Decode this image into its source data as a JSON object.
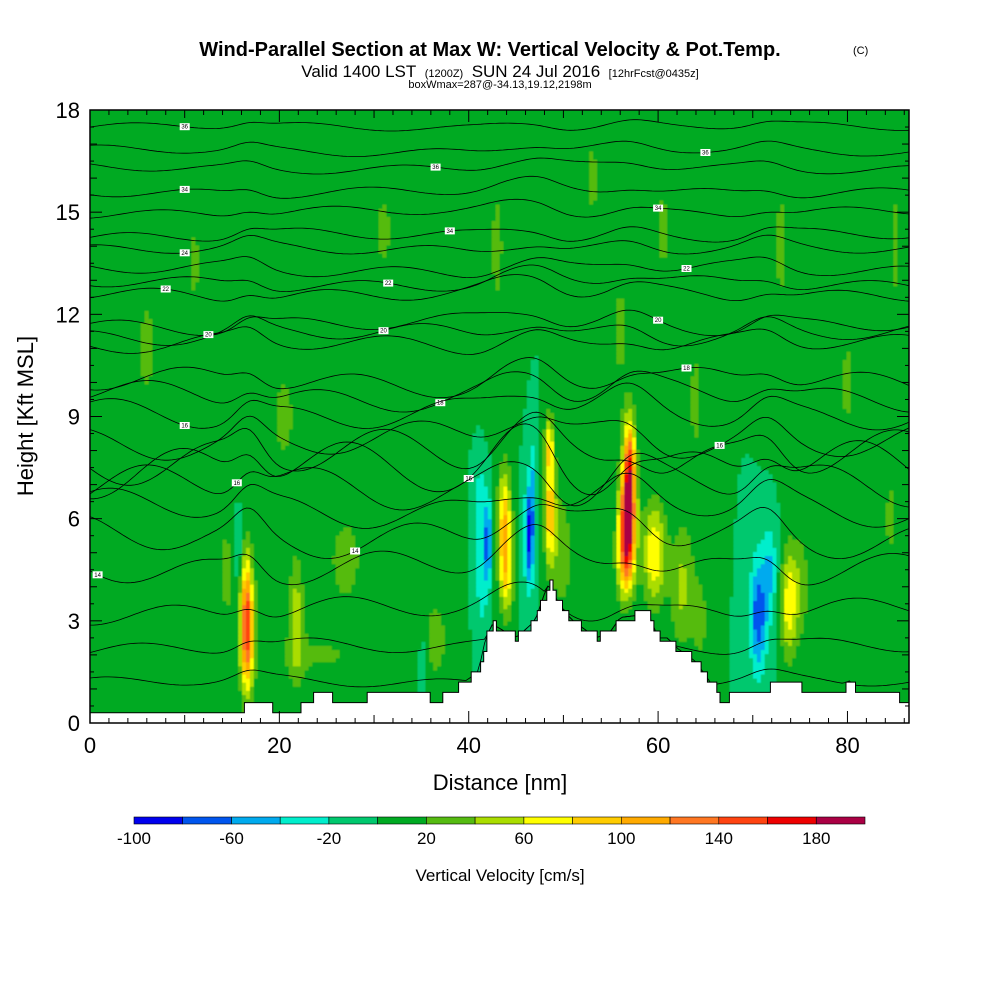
{
  "chart_data": {
    "type": "heatmap",
    "title": "Wind-Parallel Section at Max W: Vertical Velocity & Pot.Temp.",
    "title_units": "(C)",
    "subtitle": {
      "valid": "Valid 1400 LST",
      "utc": "(1200Z)",
      "date": "SUN 24 Jul 2016",
      "forecast": "[12hrFcst@0435z]"
    },
    "box_note": "boxWmax=287@-34.13,19.12,2198m",
    "xlabel": "Distance [nm]",
    "ylabel": "Height [Kft MSL]",
    "xlim": [
      0,
      86.5
    ],
    "ylim": [
      0,
      18
    ],
    "xticks": [
      0,
      20,
      40,
      60,
      80
    ],
    "yticks": [
      0,
      3,
      6,
      9,
      12,
      15,
      18
    ],
    "background_value": 0,
    "colorbar": {
      "title": "Vertical Velocity [cm/s]",
      "min": -100,
      "max": 200,
      "levels": [
        -100,
        -80,
        -60,
        -40,
        -20,
        0,
        20,
        40,
        60,
        80,
        100,
        120,
        140,
        160,
        180,
        200
      ],
      "colors": [
        "#0000ee",
        "#0055ee",
        "#00aaee",
        "#00eecc",
        "#00c86e",
        "#00aa22",
        "#55bb11",
        "#aadd00",
        "#ffff00",
        "#ffcc00",
        "#ffaa00",
        "#ff7722",
        "#ff4411",
        "#ee0000",
        "#aa0044"
      ],
      "labels": [
        "-100",
        "-60",
        "-20",
        "20",
        "60",
        "100",
        "140",
        "180"
      ],
      "label_values": [
        -100,
        -60,
        -20,
        20,
        60,
        100,
        140,
        180
      ]
    },
    "cells": [
      {
        "x": 16.5,
        "y": 3.0,
        "w": 85,
        "sx": 0.6,
        "sy": 2.0
      },
      {
        "x": 16.7,
        "y": 2.8,
        "w": 80,
        "sx": 0.8,
        "sy": 1.8
      },
      {
        "x": 21.8,
        "y": 3.1,
        "w": 50,
        "sx": 0.8,
        "sy": 1.8
      },
      {
        "x": 15.6,
        "y": 5.0,
        "w": -30,
        "sx": 0.6,
        "sy": 1.2
      },
      {
        "x": 14.5,
        "y": 4.5,
        "w": 25,
        "sx": 1.2,
        "sy": 2.2
      },
      {
        "x": 43.8,
        "y": 5.8,
        "w": 100,
        "sx": 0.7,
        "sy": 1.6
      },
      {
        "x": 44.0,
        "y": 4.2,
        "w": 55,
        "sx": 0.7,
        "sy": 1.2
      },
      {
        "x": 42.0,
        "y": 5.3,
        "w": -70,
        "sx": 0.4,
        "sy": 1.4
      },
      {
        "x": 41.3,
        "y": 4.5,
        "w": -35,
        "sx": 0.5,
        "sy": 1.8
      },
      {
        "x": 41.2,
        "y": 6.8,
        "w": -25,
        "sx": 0.5,
        "sy": 1.0
      },
      {
        "x": 46.4,
        "y": 5.5,
        "w": -90,
        "sx": 0.5,
        "sy": 1.5
      },
      {
        "x": 46.8,
        "y": 7.2,
        "w": -30,
        "sx": 0.4,
        "sy": 1.3
      },
      {
        "x": 48.6,
        "y": 6.2,
        "w": 95,
        "sx": 0.6,
        "sy": 1.6
      },
      {
        "x": 48.5,
        "y": 8.2,
        "w": 65,
        "sx": 0.5,
        "sy": 0.9
      },
      {
        "x": 49.9,
        "y": 5.0,
        "w": 35,
        "sx": 1.0,
        "sy": 1.8
      },
      {
        "x": 56.8,
        "y": 6.2,
        "w": 190,
        "sx": 0.8,
        "sy": 1.3
      },
      {
        "x": 57.0,
        "y": 7.8,
        "w": 120,
        "sx": 0.6,
        "sy": 1.2
      },
      {
        "x": 56.6,
        "y": 4.8,
        "w": 110,
        "sx": 0.9,
        "sy": 1.2
      },
      {
        "x": 59.6,
        "y": 5.0,
        "w": 80,
        "sx": 1.2,
        "sy": 1.5
      },
      {
        "x": 62.5,
        "y": 4.0,
        "w": 45,
        "sx": 1.2,
        "sy": 1.8
      },
      {
        "x": 64.5,
        "y": 3.0,
        "w": 25,
        "sx": 1.0,
        "sy": 1.5
      },
      {
        "x": 70.6,
        "y": 3.2,
        "w": -75,
        "sx": 0.9,
        "sy": 1.7
      },
      {
        "x": 71.8,
        "y": 4.5,
        "w": -40,
        "sx": 0.7,
        "sy": 1.4
      },
      {
        "x": 73.8,
        "y": 3.5,
        "w": 70,
        "sx": 0.8,
        "sy": 1.6
      },
      {
        "x": 75.0,
        "y": 4.0,
        "w": 35,
        "sx": 1.0,
        "sy": 1.6
      },
      {
        "x": 27.0,
        "y": 4.8,
        "w": 30,
        "sx": 2.0,
        "sy": 1.5
      },
      {
        "x": 36.5,
        "y": 2.5,
        "w": 28,
        "sx": 1.5,
        "sy": 1.5
      },
      {
        "x": 35.2,
        "y": 1.8,
        "w": -25,
        "sx": 0.4,
        "sy": 0.8
      },
      {
        "x": 6.0,
        "y": 11.0,
        "w": 22,
        "sx": 2.0,
        "sy": 3.5
      },
      {
        "x": 11.0,
        "y": 13.5,
        "w": 22,
        "sx": 1.5,
        "sy": 2.5
      },
      {
        "x": 20.5,
        "y": 9.0,
        "w": 22,
        "sx": 2.5,
        "sy": 3.0
      },
      {
        "x": 31.0,
        "y": 14.5,
        "w": 22,
        "sx": 2.0,
        "sy": 2.5
      },
      {
        "x": 43.0,
        "y": 14.0,
        "w": 22,
        "sx": 1.5,
        "sy": 4.0
      },
      {
        "x": 53.0,
        "y": 16.0,
        "w": 22,
        "sx": 1.5,
        "sy": 2.5
      },
      {
        "x": 56.0,
        "y": 11.5,
        "w": 22,
        "sx": 1.5,
        "sy": 3.5
      },
      {
        "x": 60.5,
        "y": 14.5,
        "w": 22,
        "sx": 1.5,
        "sy": 3.0
      },
      {
        "x": 64.0,
        "y": 9.5,
        "w": 22,
        "sx": 1.5,
        "sy": 3.5
      },
      {
        "x": 73.0,
        "y": 14.0,
        "w": 22,
        "sx": 1.5,
        "sy": 4.0
      },
      {
        "x": 80.0,
        "y": 10.0,
        "w": 22,
        "sx": 1.5,
        "sy": 3.0
      },
      {
        "x": 85.0,
        "y": 14.0,
        "w": 22,
        "sx": 1.0,
        "sy": 4.0
      },
      {
        "x": 24.0,
        "y": 2.0,
        "w": 22,
        "sx": 6.0,
        "sy": 0.8
      },
      {
        "x": 84.5,
        "y": 6.0,
        "w": 22,
        "sx": 1.0,
        "sy": 2.5
      }
    ],
    "terrain": [
      {
        "x": 0.0,
        "h": 0.3
      },
      {
        "x": 15.5,
        "h": 0.3
      },
      {
        "x": 17.0,
        "h": 0.6
      },
      {
        "x": 21.5,
        "h": 0.3
      },
      {
        "x": 23.0,
        "h": 0.6
      },
      {
        "x": 24.5,
        "h": 1.0
      },
      {
        "x": 26.0,
        "h": 0.6
      },
      {
        "x": 34.5,
        "h": 1.0
      },
      {
        "x": 36.5,
        "h": 0.6
      },
      {
        "x": 41.0,
        "h": 1.5
      },
      {
        "x": 41.8,
        "h": 2.5
      },
      {
        "x": 42.5,
        "h": 2.9
      },
      {
        "x": 45.0,
        "h": 2.5
      },
      {
        "x": 47.0,
        "h": 3.0
      },
      {
        "x": 48.0,
        "h": 3.8
      },
      {
        "x": 48.5,
        "h": 4.1
      },
      {
        "x": 49.5,
        "h": 3.5
      },
      {
        "x": 51.0,
        "h": 3.0
      },
      {
        "x": 52.5,
        "h": 2.7
      },
      {
        "x": 53.5,
        "h": 2.5
      },
      {
        "x": 55.0,
        "h": 2.7
      },
      {
        "x": 56.0,
        "h": 3.1
      },
      {
        "x": 59.0,
        "h": 3.2
      },
      {
        "x": 60.0,
        "h": 2.5
      },
      {
        "x": 61.0,
        "h": 2.5
      },
      {
        "x": 62.0,
        "h": 2.2
      },
      {
        "x": 64.0,
        "h": 1.8
      },
      {
        "x": 65.0,
        "h": 1.4
      },
      {
        "x": 66.0,
        "h": 1.0
      },
      {
        "x": 66.5,
        "h": 0.7
      },
      {
        "x": 71.5,
        "h": 1.0
      },
      {
        "x": 72.5,
        "h": 1.3
      },
      {
        "x": 75.5,
        "h": 1.0
      },
      {
        "x": 79.5,
        "h": 1.0
      },
      {
        "x": 80.0,
        "h": 1.3
      },
      {
        "x": 81.0,
        "h": 1.0
      },
      {
        "x": 85.0,
        "h": 1.0
      },
      {
        "x": 85.5,
        "h": 0.6
      },
      {
        "x": 86.5,
        "h": 0.8
      }
    ],
    "isentropes": [
      {
        "base": 17.5,
        "amp": 0.1,
        "label": "36",
        "lx": 10.0
      },
      {
        "base": 16.8,
        "amp": 0.12,
        "label": "36",
        "lx": 65.0
      },
      {
        "base": 16.3,
        "amp": 0.12,
        "label": "36",
        "lx": 36.5
      },
      {
        "base": 15.6,
        "amp": 0.14,
        "label": "34",
        "lx": 10.0
      },
      {
        "base": 15.0,
        "amp": 0.14,
        "label": "34",
        "lx": 60.0
      },
      {
        "base": 14.3,
        "amp": 0.16,
        "label": "34",
        "lx": 38.0
      },
      {
        "base": 13.9,
        "amp": 0.16,
        "label": "24",
        "lx": 10.0
      },
      {
        "base": 13.3,
        "amp": 0.18,
        "label": "22",
        "lx": 63.0
      },
      {
        "base": 12.9,
        "amp": 0.18,
        "label": "22",
        "lx": 31.5
      },
      {
        "base": 12.6,
        "amp": 0.2,
        "label": "22",
        "lx": 8.0
      },
      {
        "base": 11.7,
        "amp": 0.22,
        "label": "20",
        "lx": 60.0
      },
      {
        "base": 11.4,
        "amp": 0.24,
        "label": "20",
        "lx": 31.0
      },
      {
        "base": 11.1,
        "amp": 0.24,
        "label": "20",
        "lx": 12.5
      },
      {
        "base": 10.0,
        "amp": 0.3,
        "label": "18",
        "lx": 63.0
      },
      {
        "base": 9.6,
        "amp": 0.32,
        "label": "18",
        "lx": 37.0
      },
      {
        "base": 9.1,
        "amp": 0.35,
        "label": "16",
        "lx": 10.0
      },
      {
        "base": 8.3,
        "amp": 0.4,
        "label": "",
        "lx": 0
      },
      {
        "base": 7.8,
        "amp": 0.55,
        "label": "16",
        "lx": 66.5
      },
      {
        "base": 7.4,
        "amp": 0.6,
        "label": "16",
        "lx": 40.0
      },
      {
        "base": 6.9,
        "amp": 0.5,
        "label": "16",
        "lx": 15.5
      },
      {
        "base": 6.3,
        "amp": 0.4,
        "label": "",
        "lx": 0
      },
      {
        "base": 5.5,
        "amp": 0.45,
        "label": "14",
        "lx": 28.0
      },
      {
        "base": 4.6,
        "amp": 0.4,
        "label": "14",
        "lx": 0.8
      },
      {
        "base": 3.3,
        "amp": 0.3,
        "label": "",
        "lx": 0
      },
      {
        "base": 2.2,
        "amp": 0.2,
        "label": "",
        "lx": 0
      },
      {
        "base": 1.2,
        "amp": 0.15,
        "label": "",
        "lx": 0
      }
    ]
  }
}
